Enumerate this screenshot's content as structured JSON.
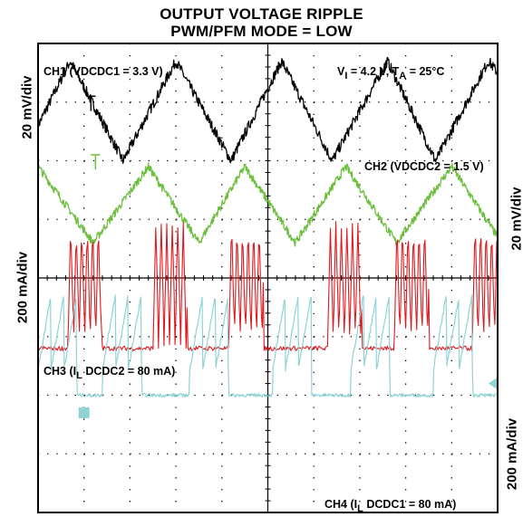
{
  "title": {
    "line1": "OUTPUT VOLTAGE RIPPLE",
    "line2": "PWM/PFM MODE = LOW"
  },
  "scale_labels": {
    "left_upper": "20 mV/div",
    "left_lower": "200 mA/div",
    "right_upper": "20 mV/div",
    "right_lower": "200 mA/div"
  },
  "annotations": {
    "ch1": "CH1 (VDCDC1 = 3.3 V)",
    "conditions": {
      "vi_prefix": "V",
      "vi_sub": "I",
      "vi_value": " = 4.2 V,  T",
      "ta_sub": "A",
      "ta_value": " = 25°C"
    },
    "ch2": "CH2 (VDCDC2 = 1.5 V)",
    "ch3": {
      "prefix": "CH3 (I",
      "sub": "L",
      "suffix": " DCDC2 = 80 mA)"
    },
    "ch4": {
      "prefix": "CH4 (I",
      "sub": "L",
      "suffix": " DCDC1 = 80 mA)"
    }
  },
  "colors": {
    "ch1": "#000000",
    "ch2": "#6cbf3c",
    "ch3": "#e0191e",
    "ch4": "#8fd3d6",
    "grid": "#000000"
  },
  "chart_data": {
    "type": "line",
    "title": "OUTPUT VOLTAGE RIPPLE PWM/PFM MODE = LOW",
    "grid": {
      "divisions_x": 10,
      "divisions_y": 8,
      "visible": true
    },
    "series": [
      {
        "name": "CH1 (VDCDC1 = 3.3 V)",
        "unit": "20 mV/div",
        "shape": "triangle",
        "x_div": [
          0.0,
          0.7,
          1.85,
          3.0,
          4.2,
          5.3,
          6.4,
          7.6,
          8.65,
          9.8,
          10.0
        ],
        "y_div": [
          2.6,
          3.7,
          2.0,
          3.7,
          2.0,
          3.7,
          2.0,
          3.7,
          2.0,
          3.7,
          3.5
        ]
      },
      {
        "name": "CH2 (VDCDC2 = 1.5 V)",
        "unit": "20 mV/div",
        "shape": "triangle",
        "x_div": [
          0.0,
          1.2,
          2.4,
          3.5,
          4.5,
          5.6,
          6.7,
          7.8,
          9.0,
          10.0
        ],
        "y_div": [
          1.9,
          0.6,
          1.9,
          0.6,
          1.9,
          0.6,
          1.9,
          0.6,
          1.9,
          0.7
        ]
      },
      {
        "name": "CH3 (IL DCDC2 = 80 mA)",
        "unit": "200 mA/div",
        "shape": "burst",
        "bursts_x_div": [
          0.95,
          2.8,
          4.45,
          6.6,
          8.05,
          9.75
        ],
        "baseline_div": -1.2,
        "peak_div": 0.9
      },
      {
        "name": "CH4 (IL DCDC1 = 80 mA)",
        "unit": "200 mA/div",
        "shape": "sawtooth",
        "ramps_x_div": [
          0.0,
          1.4,
          3.3,
          5.1,
          6.8,
          8.6
        ],
        "baseline_div": -2.0,
        "peak_div": -0.3
      }
    ]
  }
}
